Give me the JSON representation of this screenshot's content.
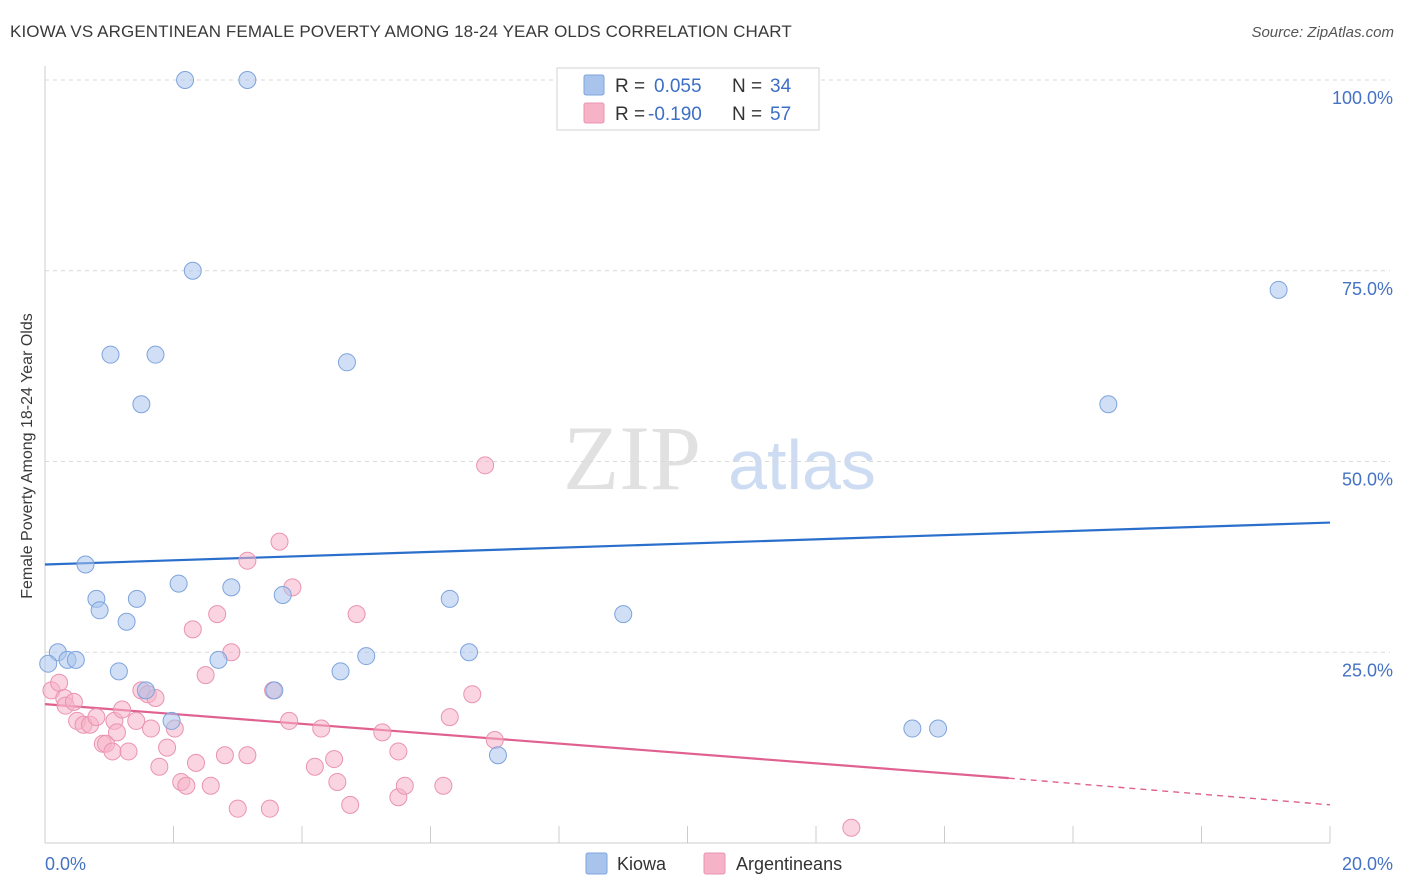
{
  "title": "KIOWA VS ARGENTINEAN FEMALE POVERTY AMONG 18-24 YEAR OLDS CORRELATION CHART",
  "source": "Source: ZipAtlas.com",
  "watermark": {
    "zip": "ZIP",
    "atlas": "atlas"
  },
  "colors": {
    "kiowa_fill": "#a9c4ec",
    "kiowa_stroke": "#7ea4dc",
    "kiowa_line": "#2a6fcb",
    "arg_fill": "#f6b3c8",
    "arg_stroke": "#ea93b0",
    "arg_line": "#e0608f",
    "tick_text": "#4472c4",
    "grid": "#d9d9d9"
  },
  "stats": [
    {
      "r_label": "R =",
      "r_value": "0.055",
      "n_label": "N =",
      "n_value": "34"
    },
    {
      "r_label": "R =",
      "r_value": "-0.190",
      "n_label": "N =",
      "n_value": "57"
    }
  ],
  "chart_data": {
    "type": "scatter",
    "title": "KIOWA VS ARGENTINEAN FEMALE POVERTY AMONG 18-24 YEAR OLDS CORRELATION CHART",
    "xlabel": "",
    "ylabel": "Female Poverty Among 18-24 Year Olds",
    "xlim": [
      0,
      20
    ],
    "ylim": [
      0,
      100
    ],
    "x_tick_labels": [
      {
        "value": 0,
        "label": "0.0%"
      },
      {
        "value": 20,
        "label": "20.0%"
      }
    ],
    "y_tick_labels": [
      {
        "value": 100,
        "label": "100.0%"
      },
      {
        "value": 75,
        "label": "75.0%"
      },
      {
        "value": 50,
        "label": "50.0%"
      },
      {
        "value": 25,
        "label": "25.0%"
      }
    ],
    "grid": true,
    "legend_position": "bottom-center",
    "series": [
      {
        "name": "Kiowa",
        "points": [
          [
            2.18,
            100
          ],
          [
            3.15,
            100
          ],
          [
            2.3,
            75
          ],
          [
            1.02,
            64
          ],
          [
            1.72,
            64
          ],
          [
            4.7,
            63
          ],
          [
            1.5,
            57.5
          ],
          [
            19.2,
            72.5
          ],
          [
            16.55,
            57.5
          ],
          [
            0.63,
            36.5
          ],
          [
            0.8,
            32
          ],
          [
            0.85,
            30.5
          ],
          [
            1.43,
            32
          ],
          [
            2.08,
            34
          ],
          [
            2.9,
            33.5
          ],
          [
            3.7,
            32.5
          ],
          [
            6.3,
            32
          ],
          [
            9.0,
            30
          ],
          [
            1.27,
            29
          ],
          [
            0.2,
            25
          ],
          [
            0.35,
            24
          ],
          [
            0.48,
            24
          ],
          [
            0.05,
            23.5
          ],
          [
            2.7,
            24
          ],
          [
            5.0,
            24.5
          ],
          [
            6.6,
            25
          ],
          [
            4.6,
            22.5
          ],
          [
            1.15,
            22.5
          ],
          [
            1.57,
            20
          ],
          [
            3.57,
            20
          ],
          [
            1.97,
            16
          ],
          [
            13.5,
            15
          ],
          [
            13.9,
            15
          ],
          [
            7.05,
            11.5
          ]
        ],
        "trend": {
          "x": [
            0,
            20
          ],
          "y": [
            36.5,
            42
          ]
        }
      },
      {
        "name": "Argentineans",
        "points": [
          [
            0.1,
            20
          ],
          [
            0.22,
            21
          ],
          [
            0.3,
            19
          ],
          [
            0.32,
            18
          ],
          [
            0.45,
            18.5
          ],
          [
            0.5,
            16
          ],
          [
            0.6,
            15.5
          ],
          [
            0.7,
            15.5
          ],
          [
            0.8,
            16.5
          ],
          [
            0.9,
            13
          ],
          [
            0.95,
            13
          ],
          [
            1.05,
            12
          ],
          [
            1.08,
            16
          ],
          [
            1.12,
            14.5
          ],
          [
            1.2,
            17.5
          ],
          [
            1.3,
            12
          ],
          [
            1.42,
            16
          ],
          [
            1.5,
            20
          ],
          [
            1.6,
            19.5
          ],
          [
            1.65,
            15
          ],
          [
            1.72,
            19
          ],
          [
            1.78,
            10
          ],
          [
            1.9,
            12.5
          ],
          [
            2.02,
            15
          ],
          [
            2.12,
            8
          ],
          [
            2.2,
            7.5
          ],
          [
            2.3,
            28
          ],
          [
            2.35,
            10.5
          ],
          [
            2.5,
            22
          ],
          [
            2.58,
            7.5
          ],
          [
            2.68,
            30
          ],
          [
            2.8,
            11.5
          ],
          [
            2.9,
            25
          ],
          [
            3.0,
            4.5
          ],
          [
            3.15,
            11.5
          ],
          [
            3.15,
            37
          ],
          [
            3.5,
            4.5
          ],
          [
            3.55,
            20
          ],
          [
            3.65,
            39.5
          ],
          [
            3.8,
            16
          ],
          [
            3.85,
            33.5
          ],
          [
            4.2,
            10
          ],
          [
            4.3,
            15
          ],
          [
            4.5,
            11
          ],
          [
            4.55,
            8
          ],
          [
            4.75,
            5
          ],
          [
            4.85,
            30
          ],
          [
            5.25,
            14.5
          ],
          [
            5.5,
            6
          ],
          [
            5.5,
            12
          ],
          [
            5.6,
            7.5
          ],
          [
            6.2,
            7.5
          ],
          [
            6.3,
            16.5
          ],
          [
            6.65,
            19.5
          ],
          [
            6.85,
            49.5
          ],
          [
            7.0,
            13.5
          ],
          [
            12.55,
            2
          ]
        ],
        "trend": {
          "x": [
            0,
            15
          ],
          "y": [
            18.2,
            8.5
          ]
        },
        "trend_dashed": {
          "x": [
            15,
            20
          ],
          "y": [
            8.5,
            5
          ]
        }
      }
    ]
  }
}
